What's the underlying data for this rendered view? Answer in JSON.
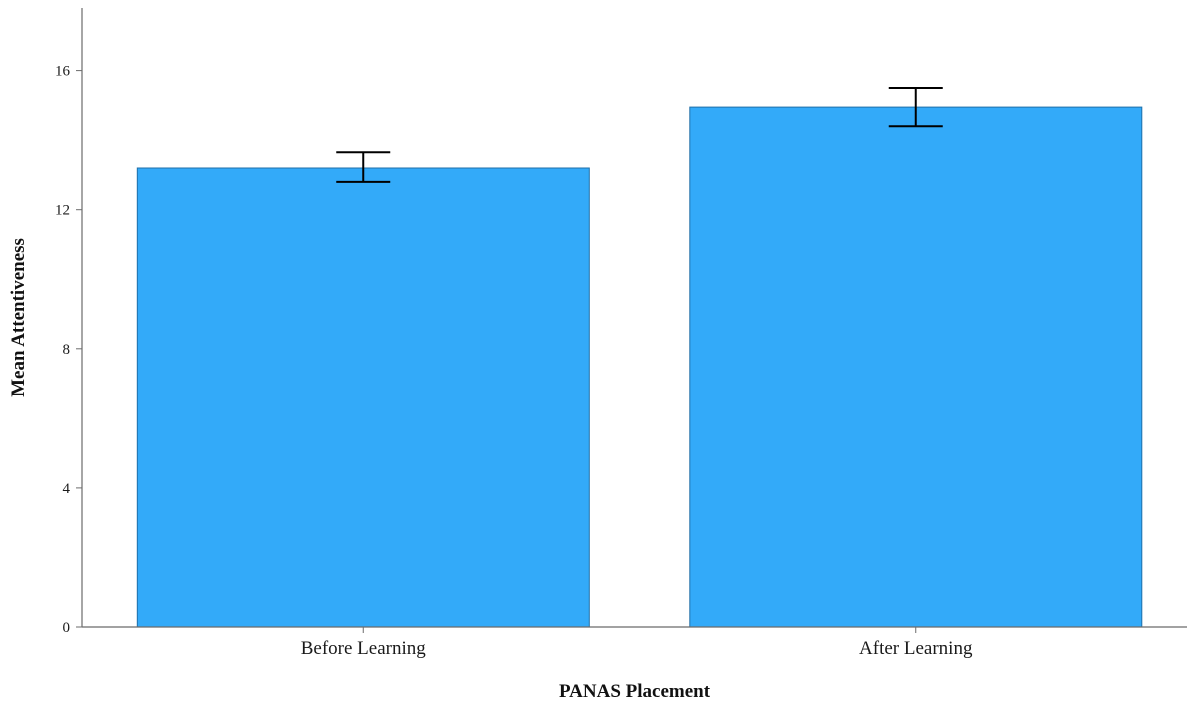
{
  "chart_data": {
    "type": "bar",
    "categories": [
      "Before Learning",
      "After Learning"
    ],
    "values": [
      13.2,
      14.95
    ],
    "error_bars": [
      {
        "low": 12.8,
        "high": 13.65
      },
      {
        "low": 14.4,
        "high": 15.5
      }
    ],
    "title": "",
    "xlabel": "PANAS Placement",
    "ylabel": "Mean Attentiveness",
    "ylim": [
      0,
      17.8
    ],
    "yticks": [
      0,
      4,
      8,
      12,
      16
    ],
    "grid": false,
    "legend": "none",
    "colors": {
      "bar_fill": "#33aaf9",
      "bar_stroke": "#1f6fa8",
      "error_bar": "#000000",
      "axis": "#6b6b6b"
    }
  }
}
